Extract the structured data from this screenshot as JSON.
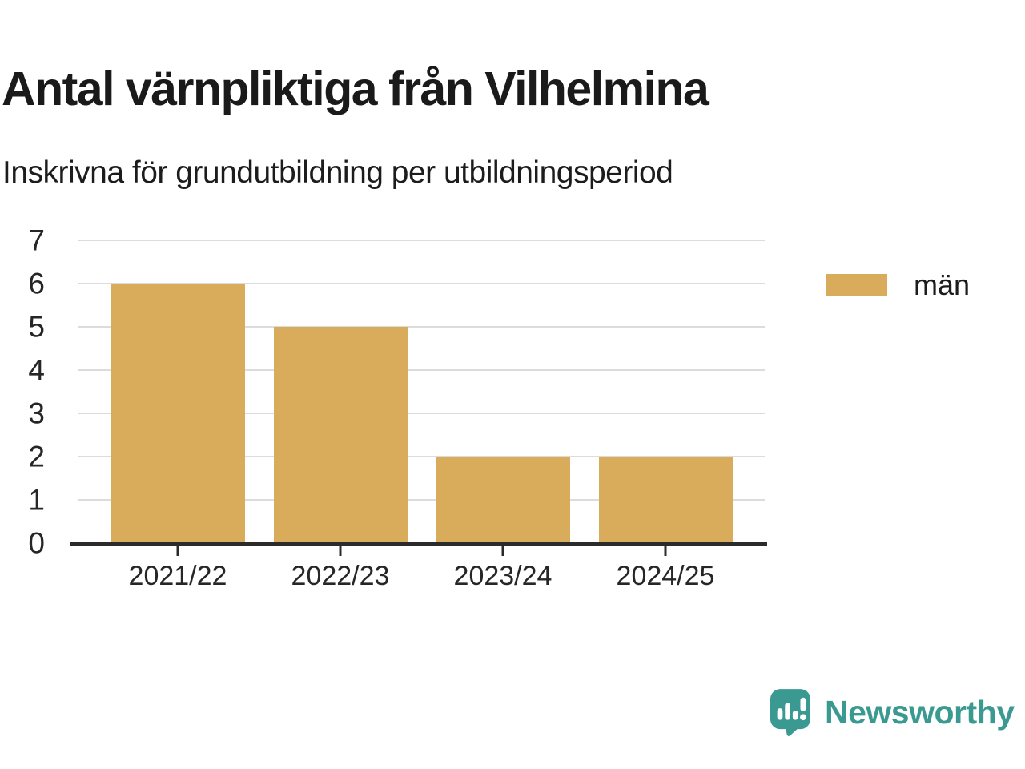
{
  "header": {
    "title": "Antal värnpliktiga från Vilhelmina",
    "subtitle": "Inskrivna för grundutbildning per utbildningsperiod"
  },
  "chart_data": {
    "type": "bar",
    "categories": [
      "2021/22",
      "2022/23",
      "2023/24",
      "2024/25"
    ],
    "series": [
      {
        "name": "män",
        "values": [
          6,
          5,
          2,
          2
        ]
      }
    ],
    "title": "Antal värnpliktiga från Vilhelmina",
    "subtitle": "Inskrivna för grundutbildning per utbildningsperiod",
    "xlabel": "",
    "ylabel": "",
    "ylim": [
      0,
      7
    ],
    "yticks": [
      0,
      1,
      2,
      3,
      4,
      5,
      6,
      7
    ],
    "grid": true,
    "legend_position": "right"
  },
  "legend": {
    "label": "män",
    "swatch_color": "#D9AC5C"
  },
  "branding": {
    "logo_text": "Newsworthy",
    "icon": "newsworthy-speech-bubble-bar-chart-icon"
  },
  "colors": {
    "bar": "#D9AC5C",
    "accent_teal": "#3A9A92",
    "grid": "#DCDCDC",
    "axis": "#2B2B2B",
    "title_text": "#1A1A1A",
    "tick_text": "#262626"
  }
}
